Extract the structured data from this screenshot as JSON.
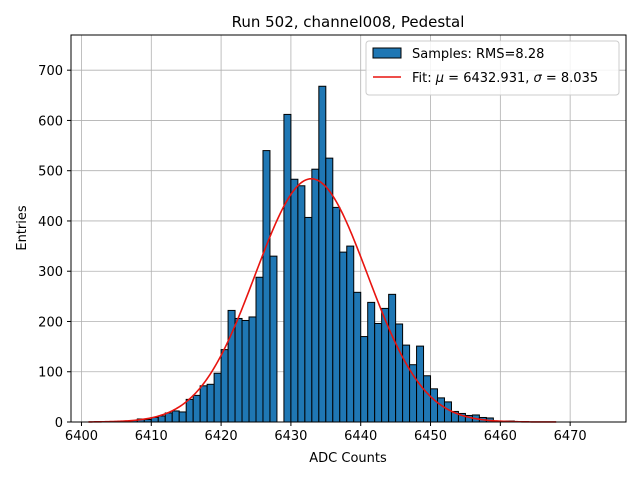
{
  "chart_data": {
    "type": "bar",
    "title": "Run 502, channel008, Pedestal",
    "xlabel": "ADC Counts",
    "ylabel": "Entries",
    "xlim": [
      6398.5,
      6478
    ],
    "ylim": [
      0,
      770
    ],
    "xticks": [
      6400,
      6410,
      6420,
      6430,
      6440,
      6450,
      6460,
      6470
    ],
    "yticks": [
      0,
      100,
      200,
      300,
      400,
      500,
      600,
      700
    ],
    "grid": true,
    "bin_width": 1,
    "bins": [
      {
        "x": 6401,
        "value": 0
      },
      {
        "x": 6402,
        "value": 0
      },
      {
        "x": 6403,
        "value": 0
      },
      {
        "x": 6404,
        "value": 1
      },
      {
        "x": 6405,
        "value": 1
      },
      {
        "x": 6406,
        "value": 2
      },
      {
        "x": 6407,
        "value": 3
      },
      {
        "x": 6408,
        "value": 6
      },
      {
        "x": 6409,
        "value": 5
      },
      {
        "x": 6410,
        "value": 9
      },
      {
        "x": 6411,
        "value": 12
      },
      {
        "x": 6412,
        "value": 18
      },
      {
        "x": 6413,
        "value": 22
      },
      {
        "x": 6414,
        "value": 20
      },
      {
        "x": 6415,
        "value": 45
      },
      {
        "x": 6416,
        "value": 53
      },
      {
        "x": 6417,
        "value": 72
      },
      {
        "x": 6418,
        "value": 75
      },
      {
        "x": 6419,
        "value": 97
      },
      {
        "x": 6420,
        "value": 144
      },
      {
        "x": 6421,
        "value": 222
      },
      {
        "x": 6422,
        "value": 206
      },
      {
        "x": 6423,
        "value": 202
      },
      {
        "x": 6424,
        "value": 209
      },
      {
        "x": 6425,
        "value": 288
      },
      {
        "x": 6426,
        "value": 540
      },
      {
        "x": 6427,
        "value": 330
      },
      {
        "x": 6428,
        "value": 0
      },
      {
        "x": 6429,
        "value": 612
      },
      {
        "x": 6430,
        "value": 483
      },
      {
        "x": 6431,
        "value": 470
      },
      {
        "x": 6432,
        "value": 407
      },
      {
        "x": 6433,
        "value": 503
      },
      {
        "x": 6434,
        "value": 668
      },
      {
        "x": 6435,
        "value": 525
      },
      {
        "x": 6436,
        "value": 427
      },
      {
        "x": 6437,
        "value": 338
      },
      {
        "x": 6438,
        "value": 350
      },
      {
        "x": 6439,
        "value": 258
      },
      {
        "x": 6440,
        "value": 170
      },
      {
        "x": 6441,
        "value": 238
      },
      {
        "x": 6442,
        "value": 196
      },
      {
        "x": 6443,
        "value": 226
      },
      {
        "x": 6444,
        "value": 254
      },
      {
        "x": 6445,
        "value": 195
      },
      {
        "x": 6446,
        "value": 153
      },
      {
        "x": 6447,
        "value": 114
      },
      {
        "x": 6448,
        "value": 151
      },
      {
        "x": 6449,
        "value": 92
      },
      {
        "x": 6450,
        "value": 66
      },
      {
        "x": 6451,
        "value": 48
      },
      {
        "x": 6452,
        "value": 40
      },
      {
        "x": 6453,
        "value": 21
      },
      {
        "x": 6454,
        "value": 17
      },
      {
        "x": 6455,
        "value": 13
      },
      {
        "x": 6456,
        "value": 14
      },
      {
        "x": 6457,
        "value": 9
      },
      {
        "x": 6458,
        "value": 8
      },
      {
        "x": 6459,
        "value": 2
      },
      {
        "x": 6460,
        "value": 2
      },
      {
        "x": 6461,
        "value": 2
      },
      {
        "x": 6462,
        "value": 1
      },
      {
        "x": 6463,
        "value": 1
      },
      {
        "x": 6464,
        "value": 0
      },
      {
        "x": 6465,
        "value": 0
      },
      {
        "x": 6466,
        "value": 0
      },
      {
        "x": 6467,
        "value": 0
      }
    ],
    "fit": {
      "mu": 6432.931,
      "sigma": 8.035,
      "amplitude": 484,
      "x_range": [
        6401,
        6468
      ]
    },
    "series": [
      {
        "name": "Samples: RMS=8.28",
        "type": "histogram",
        "color": "#1f77b4",
        "edgecolor": "#000000"
      },
      {
        "name": "Fit: μ = 6432.931, σ = 8.035",
        "type": "line",
        "color": "#e8140f"
      }
    ],
    "legend": {
      "placement": "top-right",
      "entries": [
        {
          "label_prefix": "Samples: RMS=8.28"
        },
        {
          "label_prefix": "Fit: ",
          "mu_symbol": "μ",
          "mu_text": " = 6432.931, ",
          "sigma_symbol": "σ",
          "sigma_text": " = 8.035"
        }
      ]
    }
  }
}
